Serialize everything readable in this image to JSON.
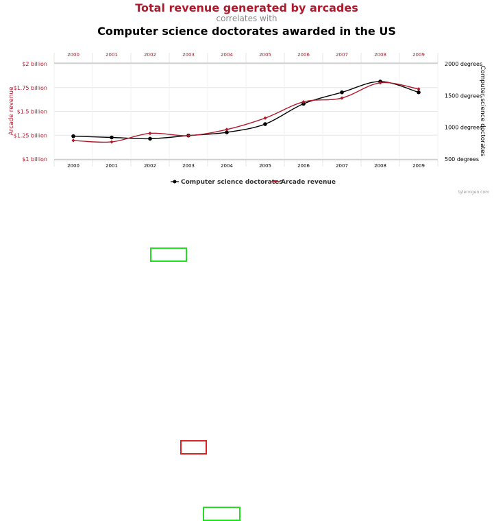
{
  "titles": {
    "main": "Total revenue generated by arcades",
    "sub": "correlates with",
    "second": "Computer science doctorates awarded in the US"
  },
  "watermark": "tylervigen.com",
  "colors": {
    "arcade": "#b0192b",
    "doctorates": "#000000",
    "grid": "#e6e6e6",
    "green_box": "#22dd22",
    "red_box": "#dd2222"
  },
  "chart_data": {
    "type": "line",
    "x": [
      "2000",
      "2001",
      "2002",
      "2003",
      "2004",
      "2005",
      "2006",
      "2007",
      "2008",
      "2009"
    ],
    "series": [
      {
        "name": "Computer science doctorates",
        "axis": "right",
        "color": "#000000",
        "values": [
          860,
          840,
          820,
          870,
          920,
          1050,
          1370,
          1550,
          1720,
          1550
        ]
      },
      {
        "name": "Arcade revenue",
        "axis": "left",
        "color": "#b0192b",
        "values": [
          1.195,
          1.18,
          1.27,
          1.245,
          1.31,
          1.43,
          1.6,
          1.64,
          1.8,
          1.735
        ]
      }
    ],
    "ylabel_left": "Arcade revenue",
    "ylim_left": [
      1.0,
      2.0
    ],
    "yticks_left": [
      {
        "value": 2.0,
        "label": "$2 billion"
      },
      {
        "value": 1.75,
        "label": "$1.75 billion"
      },
      {
        "value": 1.5,
        "label": "$1.5 billion"
      },
      {
        "value": 1.25,
        "label": "$1.25 billion"
      },
      {
        "value": 1.0,
        "label": "$1 billion"
      }
    ],
    "ylabel_right": "Computer science doctorates",
    "ylim_right": [
      500,
      2000
    ],
    "yticks_right": [
      {
        "value": 2000,
        "label": "2000 degrees"
      },
      {
        "value": 1500,
        "label": "1500 degrees"
      },
      {
        "value": 1000,
        "label": "1000 degrees"
      },
      {
        "value": 500,
        "label": "500 degrees"
      }
    ],
    "grid": true,
    "legend_position": "bottom-center"
  },
  "annotations": [
    {
      "color": "green"
    },
    {
      "color": "red"
    },
    {
      "color": "green"
    }
  ]
}
